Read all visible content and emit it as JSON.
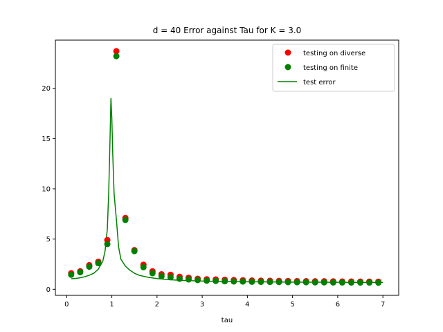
{
  "chart_data": {
    "type": "scatter",
    "title": "d = 40 Error against Tau for K = 3.0",
    "xlabel": "tau",
    "ylabel": "",
    "xlim": [
      -0.25,
      7.35
    ],
    "ylim": [
      -0.6,
      24.8
    ],
    "xticks": [
      0,
      1,
      2,
      3,
      4,
      5,
      6,
      7
    ],
    "yticks": [
      0,
      5,
      10,
      15,
      20
    ],
    "grid": false,
    "legend_position": "top-right",
    "series": [
      {
        "name": "testing on diverse",
        "kind": "scatter",
        "color": "#ff0000",
        "x": [
          0.1,
          0.3,
          0.5,
          0.7,
          0.9,
          1.1,
          1.3,
          1.5,
          1.7,
          1.9,
          2.1,
          2.3,
          2.5,
          2.7,
          2.9,
          3.1,
          3.3,
          3.5,
          3.7,
          3.9,
          4.1,
          4.3,
          4.5,
          4.7,
          4.9,
          5.1,
          5.3,
          5.5,
          5.7,
          5.9,
          6.1,
          6.3,
          6.5,
          6.7,
          6.9
        ],
        "y": [
          1.6,
          1.8,
          2.4,
          2.75,
          4.9,
          23.7,
          7.1,
          3.9,
          2.45,
          1.8,
          1.5,
          1.45,
          1.25,
          1.15,
          1.05,
          1.0,
          0.98,
          0.95,
          0.92,
          0.9,
          0.88,
          0.86,
          0.85,
          0.84,
          0.83,
          0.82,
          0.81,
          0.8,
          0.8,
          0.79,
          0.78,
          0.78,
          0.77,
          0.77,
          0.76
        ]
      },
      {
        "name": "testing on finite",
        "kind": "scatter",
        "color": "#008000",
        "x": [
          0.1,
          0.3,
          0.5,
          0.7,
          0.9,
          1.1,
          1.3,
          1.5,
          1.7,
          1.9,
          2.1,
          2.3,
          2.5,
          2.7,
          2.9,
          3.1,
          3.3,
          3.5,
          3.7,
          3.9,
          4.1,
          4.3,
          4.5,
          4.7,
          4.9,
          5.1,
          5.3,
          5.5,
          5.7,
          5.9,
          6.1,
          6.3,
          6.5,
          6.7,
          6.9
        ],
        "y": [
          1.45,
          1.7,
          2.25,
          2.6,
          4.5,
          23.2,
          6.9,
          3.8,
          2.2,
          1.6,
          1.3,
          1.2,
          1.05,
          0.98,
          0.92,
          0.86,
          0.83,
          0.8,
          0.78,
          0.77,
          0.75,
          0.74,
          0.73,
          0.72,
          0.71,
          0.7,
          0.7,
          0.69,
          0.69,
          0.68,
          0.68,
          0.67,
          0.67,
          0.67,
          0.66
        ]
      },
      {
        "name": "test error",
        "kind": "line",
        "color": "#008000",
        "x": [
          0.1,
          0.2,
          0.3,
          0.4,
          0.5,
          0.6,
          0.7,
          0.8,
          0.85,
          0.9,
          0.93,
          0.96,
          0.98,
          1.0,
          1.02,
          1.05,
          1.1,
          1.15,
          1.2,
          1.3,
          1.4,
          1.5,
          1.6,
          1.8,
          2.0,
          2.2,
          2.5,
          3.0,
          3.5,
          4.0,
          5.0,
          6.0,
          7.0
        ],
        "y": [
          1.05,
          1.08,
          1.15,
          1.25,
          1.4,
          1.6,
          2.0,
          2.8,
          3.8,
          6.0,
          9.5,
          15.0,
          19.0,
          17.0,
          13.5,
          9.5,
          7.0,
          4.2,
          3.0,
          2.3,
          1.9,
          1.6,
          1.4,
          1.2,
          1.07,
          0.98,
          0.9,
          0.82,
          0.78,
          0.75,
          0.72,
          0.7,
          0.68
        ]
      }
    ]
  }
}
